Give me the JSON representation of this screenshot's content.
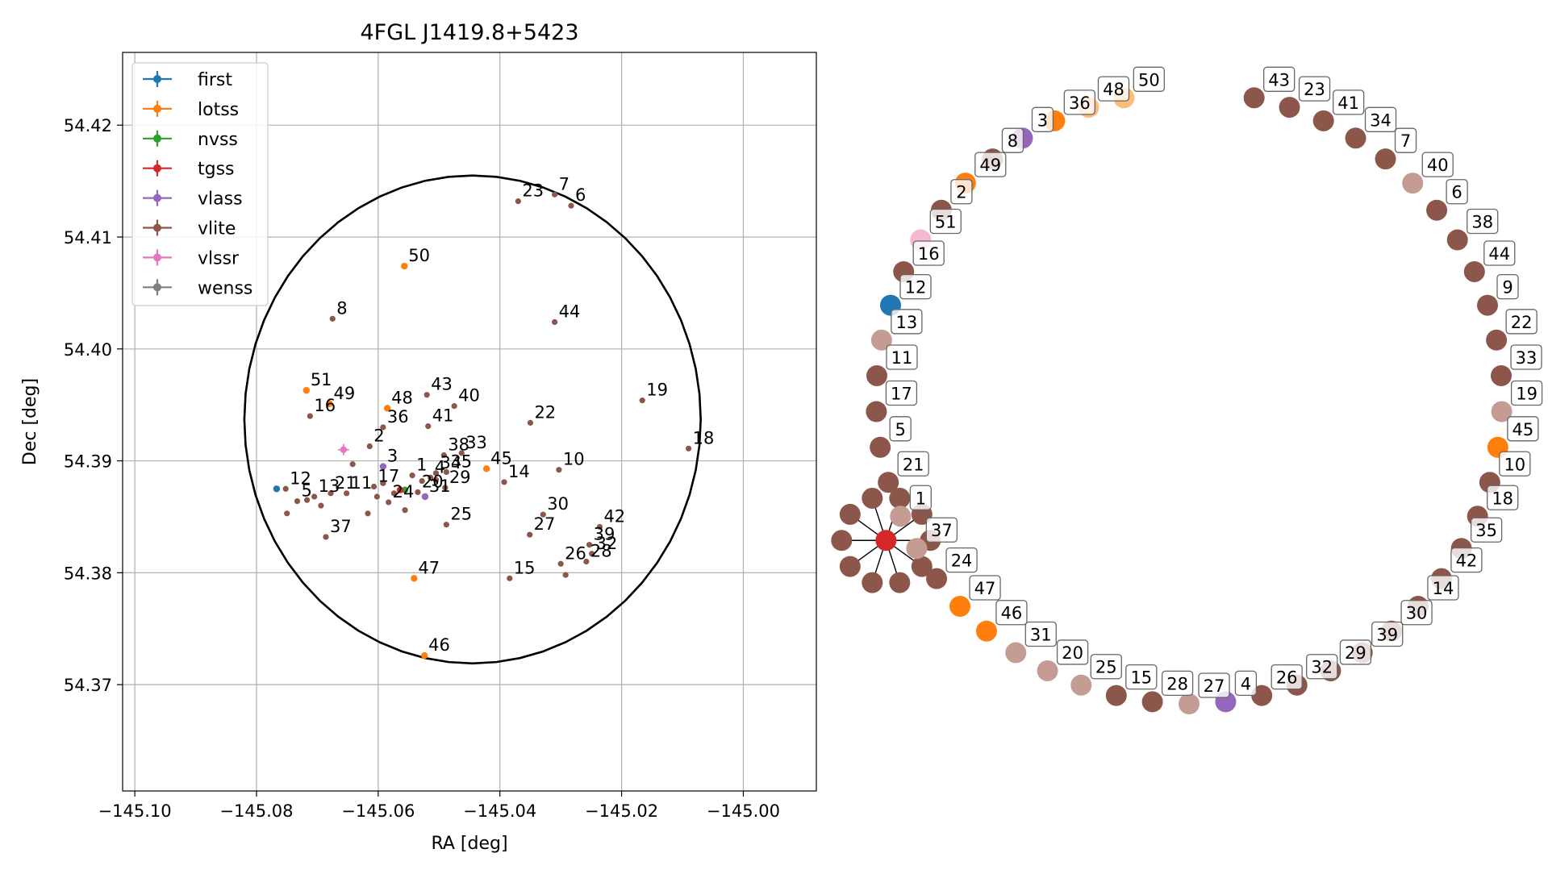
{
  "chart_data": [
    {
      "type": "scatter",
      "title": "4FGL J1419.8+5423",
      "xlabel": "RA [deg]",
      "ylabel": "Dec [deg]",
      "xlim": [
        -145.102,
        -144.988
      ],
      "ylim": [
        54.3605,
        54.4265
      ],
      "xticks": [
        -145.1,
        -145.08,
        -145.06,
        -145.04,
        -145.02,
        -145.0
      ],
      "xtick_labels": [
        "−145.10",
        "−145.08",
        "−145.06",
        "−145.04",
        "−145.02",
        "−145.00"
      ],
      "yticks": [
        54.37,
        54.38,
        54.39,
        54.4,
        54.41,
        54.42
      ],
      "ytick_labels": [
        "54.37",
        "54.38",
        "54.39",
        "54.40",
        "54.41",
        "54.42"
      ],
      "grid": true,
      "legend_position": "top-left",
      "ellipse": {
        "center_ra": -145.0445,
        "center_dec": 54.3937,
        "ra_radius": 0.0375,
        "dec_radius": 0.0218
      },
      "series": [
        {
          "name": "first",
          "color": "#1f77b4",
          "points": [
            {
              "ra": -145.0767,
              "dec": 54.3875
            }
          ]
        },
        {
          "name": "lotss",
          "color": "#ff7f0e",
          "points": [
            {
              "ra": -145.0557,
              "dec": 54.4074,
              "label": "50"
            },
            {
              "ra": -145.0718,
              "dec": 54.3963,
              "label": "51"
            },
            {
              "ra": -145.068,
              "dec": 54.3951,
              "label": "49"
            },
            {
              "ra": -145.0585,
              "dec": 54.3947,
              "label": "48"
            },
            {
              "ra": -145.0422,
              "dec": 54.3893,
              "label": "45"
            },
            {
              "ra": -145.0541,
              "dec": 54.3795,
              "label": "47"
            },
            {
              "ra": -145.0524,
              "dec": 54.3726,
              "label": "46"
            }
          ]
        },
        {
          "name": "nvss",
          "color": "#2ca02c",
          "points": [
            {
              "ra": -145.0556,
              "dec": 54.3874
            }
          ]
        },
        {
          "name": "tgss",
          "color": "#d62728",
          "points": [
            {
              "ra": -145.0564,
              "dec": 54.3874
            }
          ]
        },
        {
          "name": "vlass",
          "color": "#9467bd",
          "points": [
            {
              "ra": -145.0592,
              "dec": 54.3895,
              "label": "3"
            },
            {
              "ra": -145.0523,
              "dec": 54.3868,
              "label": "31"
            }
          ]
        },
        {
          "name": "vlite",
          "color": "#8c564b",
          "points": [
            {
              "ra": -145.037,
              "dec": 54.4132,
              "label": "23"
            },
            {
              "ra": -145.031,
              "dec": 54.4138,
              "label": "7"
            },
            {
              "ra": -145.0283,
              "dec": 54.4128,
              "label": "6"
            },
            {
              "ra": -145.0675,
              "dec": 54.4027,
              "label": "8"
            },
            {
              "ra": -145.031,
              "dec": 54.4024,
              "label": "44"
            },
            {
              "ra": -145.0166,
              "dec": 54.3954,
              "label": "19"
            },
            {
              "ra": -145.009,
              "dec": 54.3911,
              "label": "18"
            },
            {
              "ra": -145.0712,
              "dec": 54.394,
              "label": "16"
            },
            {
              "ra": -145.0592,
              "dec": 54.393,
              "label": "36"
            },
            {
              "ra": -145.052,
              "dec": 54.3959,
              "label": "43"
            },
            {
              "ra": -145.0518,
              "dec": 54.3931,
              "label": "41"
            },
            {
              "ra": -145.0475,
              "dec": 54.3949,
              "label": "40"
            },
            {
              "ra": -145.035,
              "dec": 54.3934,
              "label": "22"
            },
            {
              "ra": -145.0614,
              "dec": 54.3913,
              "label": "2"
            },
            {
              "ra": -145.0642,
              "dec": 54.3897
            },
            {
              "ra": -145.0492,
              "dec": 54.3905,
              "label": "38"
            },
            {
              "ra": -145.0463,
              "dec": 54.3907,
              "label": "33"
            },
            {
              "ra": -145.0505,
              "dec": 54.3889,
              "label": "34"
            },
            {
              "ra": -145.0488,
              "dec": 54.389,
              "label": "35"
            },
            {
              "ra": -145.0303,
              "dec": 54.3892,
              "label": "10"
            },
            {
              "ra": -145.0393,
              "dec": 54.3881,
              "label": "14"
            },
            {
              "ra": -145.0752,
              "dec": 54.3875,
              "label": "12"
            },
            {
              "ra": -145.0705,
              "dec": 54.3868,
              "label": "13"
            },
            {
              "ra": -145.0717,
              "dec": 54.3865
            },
            {
              "ra": -145.0733,
              "dec": 54.3864,
              "label": "5"
            },
            {
              "ra": -145.0694,
              "dec": 54.386
            },
            {
              "ra": -145.0678,
              "dec": 54.3871,
              "label": "21"
            },
            {
              "ra": -145.0652,
              "dec": 54.3871,
              "label": "11"
            },
            {
              "ra": -145.0607,
              "dec": 54.3877,
              "label": "17"
            },
            {
              "ra": -145.0602,
              "dec": 54.3868
            },
            {
              "ra": -145.0592,
              "dec": 54.388
            },
            {
              "ra": -145.0574,
              "dec": 54.3871
            },
            {
              "ra": -145.0583,
              "dec": 54.3863,
              "label": "24"
            },
            {
              "ra": -145.0544,
              "dec": 54.3887,
              "label": "1"
            },
            {
              "ra": -145.0528,
              "dec": 54.3882
            },
            {
              "ra": -145.0514,
              "dec": 54.3885,
              "label": "4"
            },
            {
              "ra": -145.0535,
              "dec": 54.3872,
              "label": "20"
            },
            {
              "ra": -145.0505,
              "dec": 54.3883
            },
            {
              "ra": -145.049,
              "dec": 54.3876,
              "label": "29"
            },
            {
              "ra": -145.0556,
              "dec": 54.3856
            },
            {
              "ra": -145.0617,
              "dec": 54.3853
            },
            {
              "ra": -145.075,
              "dec": 54.3853
            },
            {
              "ra": -145.0488,
              "dec": 54.3843,
              "label": "25"
            },
            {
              "ra": -145.0686,
              "dec": 54.3832,
              "label": "37"
            },
            {
              "ra": -145.0329,
              "dec": 54.3852,
              "label": "30"
            },
            {
              "ra": -145.0351,
              "dec": 54.3834,
              "label": "27"
            },
            {
              "ra": -145.0236,
              "dec": 54.3841,
              "label": "42"
            },
            {
              "ra": -145.0253,
              "dec": 54.3825,
              "label": "39"
            },
            {
              "ra": -145.03,
              "dec": 54.3808,
              "label": "26"
            },
            {
              "ra": -145.0258,
              "dec": 54.381,
              "label": "28"
            },
            {
              "ra": -145.0249,
              "dec": 54.3817,
              "label": "32"
            },
            {
              "ra": -145.0384,
              "dec": 54.3795,
              "label": "15"
            },
            {
              "ra": -145.0292,
              "dec": 54.3798
            }
          ]
        },
        {
          "name": "vlssr",
          "color": "#e377c2",
          "points": [
            {
              "ra": -145.0657,
              "dec": 54.391
            }
          ]
        },
        {
          "name": "wenss",
          "color": "#7f7f7f",
          "points": []
        }
      ]
    },
    {
      "type": "graph",
      "layout": "ring",
      "nodes": [
        {
          "label": "50",
          "color": "#ffbb78"
        },
        {
          "label": "48",
          "color": "#ffbb78"
        },
        {
          "label": "36",
          "color": "#ff7f0e"
        },
        {
          "label": "3",
          "color": "#9467bd"
        },
        {
          "label": "8",
          "color": "#8c564b"
        },
        {
          "label": "49",
          "color": "#ff7f0e"
        },
        {
          "label": "2",
          "color": "#8c564b"
        },
        {
          "label": "51",
          "color": "#f7b6d2"
        },
        {
          "label": "16",
          "color": "#8c564b"
        },
        {
          "label": "12",
          "color": "#1f77b4"
        },
        {
          "label": "13",
          "color": "#c49c94"
        },
        {
          "label": "11",
          "color": "#8c564b"
        },
        {
          "label": "17",
          "color": "#8c564b"
        },
        {
          "label": "5",
          "color": "#8c564b"
        },
        {
          "label": "21",
          "color": "#8c564b"
        },
        {
          "label": "1",
          "color": "#c49c94"
        },
        {
          "label": "37",
          "color": "#c49c94"
        },
        {
          "label": "24",
          "color": "#8c564b"
        },
        {
          "label": "47",
          "color": "#ff7f0e"
        },
        {
          "label": "46",
          "color": "#ff7f0e"
        },
        {
          "label": "31",
          "color": "#c49c94"
        },
        {
          "label": "20",
          "color": "#c49c94"
        },
        {
          "label": "25",
          "color": "#c49c94"
        },
        {
          "label": "15",
          "color": "#8c564b"
        },
        {
          "label": "28",
          "color": "#8c564b"
        },
        {
          "label": "27",
          "color": "#c49c94"
        },
        {
          "label": "4",
          "color": "#9467bd"
        },
        {
          "label": "26",
          "color": "#8c564b"
        },
        {
          "label": "32",
          "color": "#8c564b"
        },
        {
          "label": "29",
          "color": "#8c564b"
        },
        {
          "label": "39",
          "color": "#8c564b"
        },
        {
          "label": "30",
          "color": "#8c564b"
        },
        {
          "label": "14",
          "color": "#8c564b"
        },
        {
          "label": "42",
          "color": "#8c564b"
        },
        {
          "label": "35",
          "color": "#8c564b"
        },
        {
          "label": "18",
          "color": "#8c564b"
        },
        {
          "label": "10",
          "color": "#8c564b"
        },
        {
          "label": "45",
          "color": "#ff7f0e"
        },
        {
          "label": "19",
          "color": "#c49c94"
        },
        {
          "label": "33",
          "color": "#8c564b"
        },
        {
          "label": "22",
          "color": "#8c564b"
        },
        {
          "label": "9",
          "color": "#8c564b"
        },
        {
          "label": "44",
          "color": "#8c564b"
        },
        {
          "label": "38",
          "color": "#8c564b"
        },
        {
          "label": "6",
          "color": "#8c564b"
        },
        {
          "label": "40",
          "color": "#c49c94"
        },
        {
          "label": "7",
          "color": "#8c564b"
        },
        {
          "label": "34",
          "color": "#8c564b"
        },
        {
          "label": "41",
          "color": "#8c564b"
        },
        {
          "label": "23",
          "color": "#8c564b"
        },
        {
          "label": "43",
          "color": "#8c564b"
        }
      ]
    }
  ]
}
